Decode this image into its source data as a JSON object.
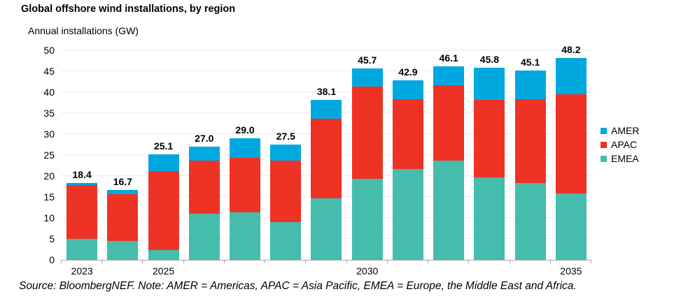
{
  "page": {
    "source_note": "Source: BloombergNEF. Note: AMER = Americas, APAC = Asia Pacific, EMEA = Europe, the Middle East and Africa."
  },
  "chart_data": {
    "type": "bar",
    "stacked": true,
    "title": "Global offshore wind installations, by region",
    "ylabel": "Annual installations (GW)",
    "xlabel": "",
    "ylim": [
      0,
      50
    ],
    "yticks": [
      0,
      5,
      10,
      15,
      20,
      25,
      30,
      35,
      40,
      45,
      50
    ],
    "grid": "horizontal-dotted",
    "legend_position": "right",
    "categories": [
      "2023",
      "2024",
      "2025",
      "2026",
      "2027",
      "2028",
      "2029",
      "2030",
      "2031",
      "2032",
      "2033",
      "2034",
      "2035"
    ],
    "x_axis_labeled_categories": [
      "2023",
      "2025",
      "2030",
      "2035"
    ],
    "series": [
      {
        "name": "EMEA",
        "color": "#45bcac",
        "values": [
          5.0,
          4.5,
          2.4,
          11.0,
          11.3,
          9.0,
          14.6,
          19.4,
          21.7,
          23.7,
          19.6,
          18.4,
          15.9
        ]
      },
      {
        "name": "APAC",
        "color": "#ee3224",
        "values": [
          12.9,
          11.1,
          18.8,
          12.6,
          13.0,
          14.7,
          19.1,
          22.0,
          16.7,
          17.9,
          18.6,
          19.9,
          23.6
        ]
      },
      {
        "name": "AMER",
        "color": "#00a8e0",
        "values": [
          0.5,
          1.1,
          3.9,
          3.4,
          4.7,
          3.8,
          4.4,
          4.3,
          4.5,
          4.5,
          7.6,
          6.8,
          8.7
        ]
      }
    ],
    "totals": [
      18.4,
      16.7,
      25.1,
      27.0,
      29.0,
      27.5,
      38.1,
      45.7,
      42.9,
      46.1,
      45.8,
      45.1,
      48.2
    ],
    "legend": [
      "AMER",
      "APAC",
      "EMEA"
    ],
    "colors": {
      "amer": "#00a8e0",
      "apac": "#ee3224",
      "emea": "#45bcac",
      "gridline": "#d8d8d8",
      "axis": "#a6a6a6"
    }
  }
}
